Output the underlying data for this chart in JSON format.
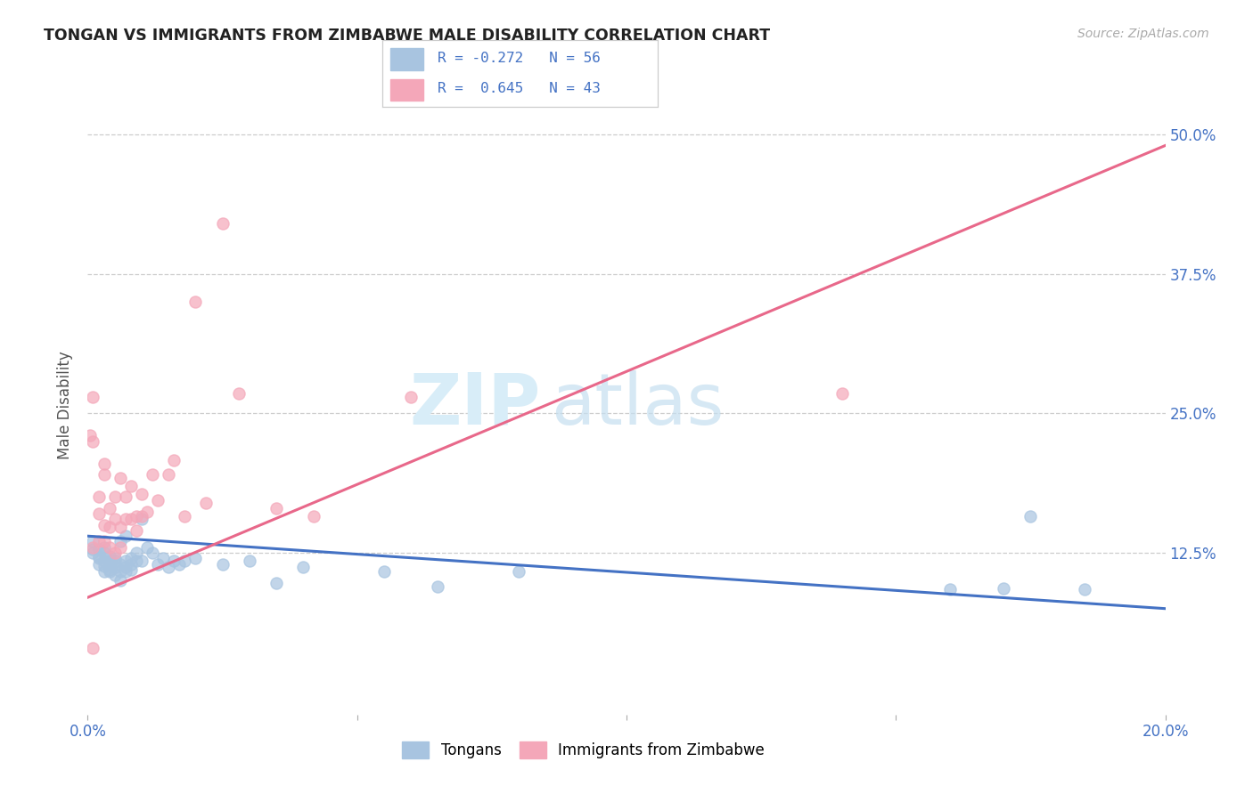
{
  "title": "TONGAN VS IMMIGRANTS FROM ZIMBABWE MALE DISABILITY CORRELATION CHART",
  "source": "Source: ZipAtlas.com",
  "ylabel": "Male Disability",
  "xlim": [
    0.0,
    0.2
  ],
  "ylim": [
    -0.02,
    0.535
  ],
  "tongan_color": "#a8c4e0",
  "zimbabwe_color": "#f4a7b9",
  "tongan_line_color": "#4472c4",
  "zimbabwe_line_color": "#e8688a",
  "legend_R_tongan": "-0.272",
  "legend_N_tongan": "56",
  "legend_R_zimbabwe": "0.645",
  "legend_N_zimbabwe": "43",
  "watermark_zip": "ZIP",
  "watermark_atlas": "atlas",
  "background_color": "#ffffff",
  "tongan_R": -0.272,
  "tongan_N": 56,
  "zimbabwe_R": 0.645,
  "zimbabwe_N": 43,
  "tongan_line_x0": 0.0,
  "tongan_line_y0": 0.14,
  "tongan_line_x1": 0.2,
  "tongan_line_y1": 0.075,
  "zimbabwe_line_x0": 0.0,
  "zimbabwe_line_y0": 0.085,
  "zimbabwe_line_x1": 0.2,
  "zimbabwe_line_y1": 0.49,
  "tongan_points_x": [
    0.001,
    0.001,
    0.001,
    0.002,
    0.002,
    0.002,
    0.002,
    0.003,
    0.003,
    0.003,
    0.003,
    0.003,
    0.004,
    0.004,
    0.004,
    0.004,
    0.004,
    0.005,
    0.005,
    0.005,
    0.005,
    0.006,
    0.006,
    0.006,
    0.006,
    0.007,
    0.007,
    0.007,
    0.007,
    0.008,
    0.008,
    0.008,
    0.009,
    0.009,
    0.01,
    0.01,
    0.011,
    0.012,
    0.013,
    0.014,
    0.015,
    0.016,
    0.017,
    0.018,
    0.02,
    0.025,
    0.03,
    0.035,
    0.04,
    0.055,
    0.065,
    0.08,
    0.16,
    0.17,
    0.175,
    0.185
  ],
  "tongan_points_y": [
    0.128,
    0.125,
    0.135,
    0.12,
    0.128,
    0.115,
    0.122,
    0.118,
    0.125,
    0.113,
    0.13,
    0.108,
    0.115,
    0.122,
    0.11,
    0.118,
    0.108,
    0.112,
    0.118,
    0.105,
    0.12,
    0.115,
    0.108,
    0.135,
    0.1,
    0.112,
    0.118,
    0.108,
    0.14,
    0.11,
    0.115,
    0.12,
    0.118,
    0.125,
    0.118,
    0.155,
    0.13,
    0.125,
    0.115,
    0.12,
    0.112,
    0.118,
    0.115,
    0.118,
    0.12,
    0.115,
    0.118,
    0.098,
    0.112,
    0.108,
    0.095,
    0.108,
    0.092,
    0.093,
    0.158,
    0.092
  ],
  "zimbabwe_points_x": [
    0.0005,
    0.001,
    0.001,
    0.001,
    0.002,
    0.002,
    0.002,
    0.003,
    0.003,
    0.003,
    0.003,
    0.004,
    0.004,
    0.004,
    0.005,
    0.005,
    0.005,
    0.006,
    0.006,
    0.006,
    0.007,
    0.007,
    0.008,
    0.008,
    0.009,
    0.009,
    0.01,
    0.01,
    0.011,
    0.012,
    0.013,
    0.015,
    0.016,
    0.018,
    0.02,
    0.022,
    0.025,
    0.028,
    0.035,
    0.042,
    0.06,
    0.001,
    0.14
  ],
  "zimbabwe_points_y": [
    0.23,
    0.13,
    0.225,
    0.265,
    0.135,
    0.175,
    0.16,
    0.135,
    0.15,
    0.195,
    0.205,
    0.13,
    0.148,
    0.165,
    0.125,
    0.155,
    0.175,
    0.13,
    0.148,
    0.192,
    0.155,
    0.175,
    0.155,
    0.185,
    0.145,
    0.158,
    0.158,
    0.178,
    0.162,
    0.195,
    0.172,
    0.195,
    0.208,
    0.158,
    0.35,
    0.17,
    0.42,
    0.268,
    0.165,
    0.158,
    0.265,
    0.04,
    0.268
  ]
}
